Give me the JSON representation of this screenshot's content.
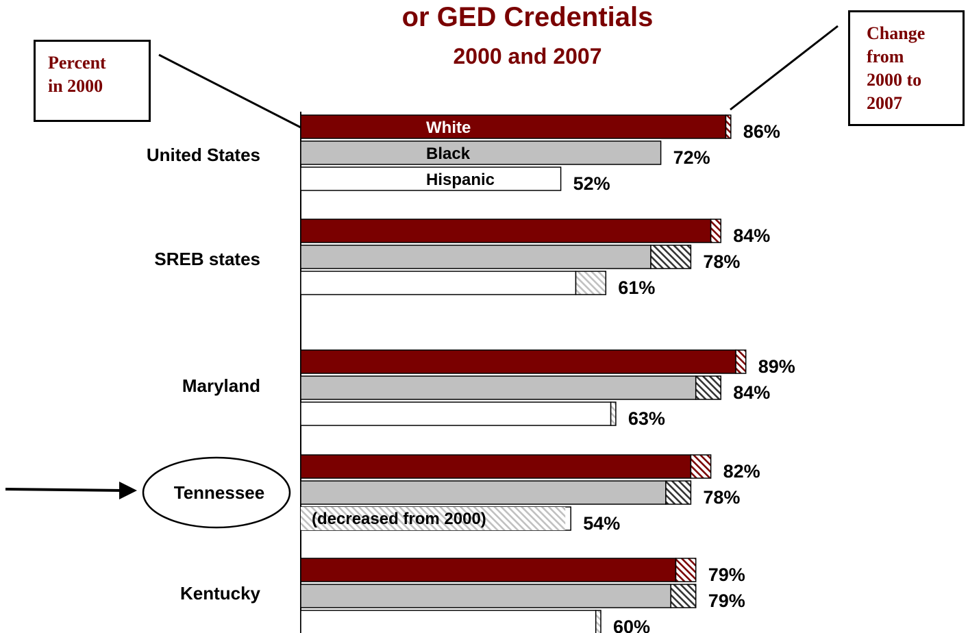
{
  "title": "or GED Credentials",
  "subtitle": "2000 and 2007",
  "callouts": {
    "left": [
      "Percent",
      "in 2000"
    ],
    "right": [
      "Change",
      "from",
      "2000 to",
      "2007"
    ]
  },
  "colors": {
    "White": "#7a0000",
    "Black": "#c0c0c0",
    "Hispanic": "#ffffff",
    "title": "#7a0000",
    "hatch_White": "#7a0000",
    "hatch_Black": "#333333",
    "hatch_Hispanic": "#c0c0c0"
  },
  "chart_data": {
    "type": "bar",
    "orientation": "horizontal",
    "stacked_change": true,
    "categories": [
      "United States",
      "SREB states",
      "Maryland",
      "Tennessee",
      "Kentucky"
    ],
    "highlighted_category": "Tennessee",
    "series": [
      {
        "name": "White",
        "value_2000": [
          85,
          82,
          87,
          78,
          75
        ],
        "value_2007": [
          86,
          84,
          89,
          82,
          79
        ],
        "labels": [
          "86%",
          "84%",
          "89%",
          "82%",
          "79%"
        ]
      },
      {
        "name": "Black",
        "value_2000": [
          72,
          70,
          79,
          73,
          74
        ],
        "value_2007": [
          72,
          78,
          84,
          78,
          79
        ],
        "labels": [
          "72%",
          "78%",
          "84%",
          "78%",
          "79%"
        ]
      },
      {
        "name": "Hispanic",
        "value_2000": [
          52,
          55,
          62,
          54,
          59
        ],
        "value_2007": [
          52,
          61,
          63,
          54,
          60
        ],
        "labels": [
          "52%",
          "61%",
          "63%",
          "54%",
          "60%"
        ]
      }
    ],
    "annotations": {
      "Tennessee_Hispanic": "(decreased from 2000)"
    },
    "xlim": [
      0,
      100
    ]
  }
}
